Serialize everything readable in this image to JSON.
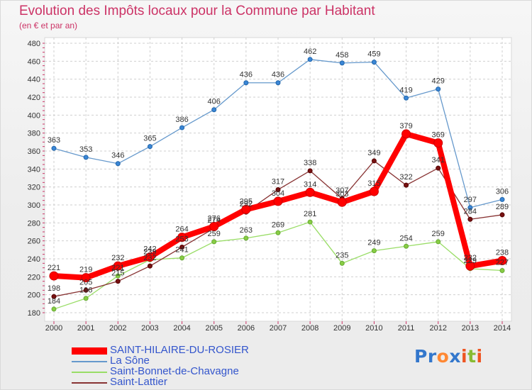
{
  "header": {
    "title": "Evolution des Impôts locaux pour la Commune par Habitant",
    "subtitle": "(en € et par an)"
  },
  "logo": {
    "letters": [
      "P",
      "r",
      "o",
      "x",
      "i",
      "t",
      "i"
    ],
    "colors": [
      "#3377cc",
      "#3377cc",
      "#ff8833",
      "#3377cc",
      "#ee5522",
      "#88bb33",
      "#ee5522"
    ]
  },
  "chart_data": {
    "type": "line",
    "title": "Evolution des Impôts locaux pour la Commune par Habitant",
    "subtitle": "(en € et par an)",
    "x": [
      "2000",
      "2001",
      "2002",
      "2003",
      "2004",
      "2005",
      "2006",
      "2007",
      "2008",
      "2009",
      "2010",
      "2011",
      "2012",
      "2013",
      "2014"
    ],
    "ylim": [
      180,
      480
    ],
    "yticks": [
      180,
      200,
      220,
      240,
      260,
      280,
      300,
      320,
      340,
      360,
      380,
      400,
      420,
      440,
      460,
      480
    ],
    "grid": true,
    "legend_position": "bottom",
    "series": [
      {
        "name": "SAINT-HILAIRE-DU-ROSIER",
        "color": "#ff0000",
        "values": [
          221,
          219,
          232,
          242,
          264,
          276,
          295,
          304,
          314,
          303,
          315,
          379,
          369,
          232,
          238
        ]
      },
      {
        "name": "La Sône",
        "color": "#6699cc",
        "values": [
          363,
          353,
          346,
          365,
          386,
          406,
          436,
          436,
          462,
          458,
          459,
          419,
          429,
          297,
          306
        ]
      },
      {
        "name": "Saint-Bonnet-de-Chavagne",
        "color": "#99dd66",
        "values": [
          184,
          196,
          221,
          239,
          241,
          259,
          263,
          269,
          281,
          235,
          249,
          254,
          259,
          229,
          227
        ]
      },
      {
        "name": "Saint-Lattier",
        "color": "#883333",
        "values": [
          198,
          205,
          215,
          232,
          253,
          274,
          292,
          317,
          338,
          307,
          349,
          322,
          341,
          284,
          289
        ]
      }
    ]
  }
}
